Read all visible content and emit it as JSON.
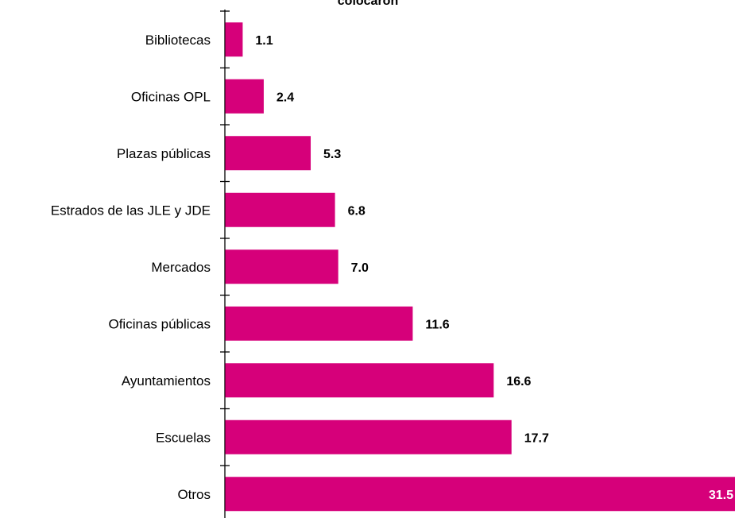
{
  "chart_data": {
    "type": "bar",
    "orientation": "horizontal",
    "title": "colocaron",
    "categories": [
      "Bibliotecas",
      "Oficinas OPL",
      "Plazas públicas",
      "Estrados de las JLE y JDE",
      "Mercados",
      "Oficinas públicas",
      "Ayuntamientos",
      "Escuelas",
      "Otros"
    ],
    "values": [
      1.1,
      2.4,
      5.3,
      6.8,
      7.0,
      11.6,
      16.6,
      17.7,
      31.5
    ],
    "value_labels": [
      "1.1",
      "2.4",
      "5.3",
      "6.8",
      "7.0",
      "11.6",
      "16.6",
      "17.7",
      "31.5"
    ],
    "xlim": [
      0,
      31.5
    ],
    "grid": false,
    "legend": "none",
    "colors": {
      "bar": "#d6007a",
      "axis": "#000000",
      "text": "#000000",
      "inside_label": "#ffffff"
    }
  }
}
